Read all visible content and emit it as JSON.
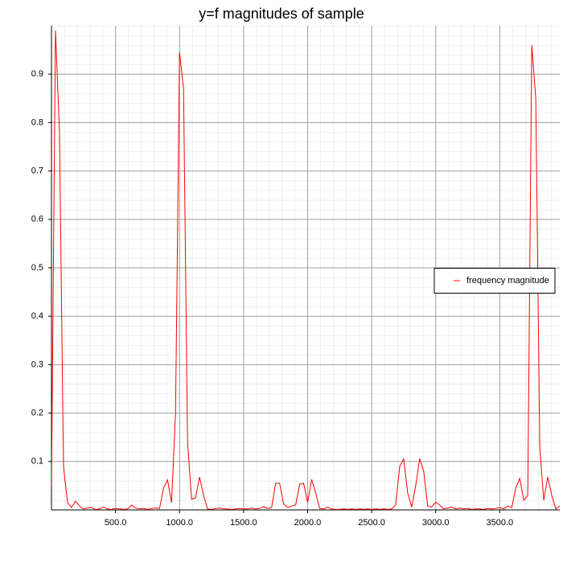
{
  "chart_data": {
    "type": "line",
    "title": "y=f magnitudes of sample",
    "x": [
      0,
      31.25,
      62.5,
      93.75,
      125,
      156.25,
      187.5,
      218.75,
      250,
      281.25,
      312.5,
      343.75,
      375,
      406.25,
      437.5,
      468.75,
      500,
      531.25,
      562.5,
      593.75,
      625,
      656.25,
      687.5,
      718.75,
      750,
      781.25,
      812.5,
      843.75,
      875,
      906.25,
      937.5,
      968.75,
      1000,
      1031.25,
      1062.5,
      1093.75,
      1125,
      1156.25,
      1187.5,
      1218.75,
      1250,
      1281.25,
      1312.5,
      1343.75,
      1375,
      1406.25,
      1437.5,
      1468.75,
      1500,
      1531.25,
      1562.5,
      1593.75,
      1625,
      1656.25,
      1687.5,
      1718.75,
      1750,
      1781.25,
      1812.5,
      1843.75,
      1875,
      1906.25,
      1937.5,
      1968.75,
      2000,
      2031.25,
      2062.5,
      2093.75,
      2125,
      2156.25,
      2187.5,
      2218.75,
      2250,
      2281.25,
      2312.5,
      2343.75,
      2375,
      2406.25,
      2437.5,
      2468.75,
      2500,
      2531.25,
      2562.5,
      2593.75,
      2625,
      2656.25,
      2687.5,
      2718.75,
      2750,
      2781.25,
      2812.5,
      2843.75,
      2875,
      2906.25,
      2937.5,
      2968.75,
      3000,
      3031.25,
      3062.5,
      3093.75,
      3125,
      3156.25,
      3187.5,
      3218.75,
      3250,
      3281.25,
      3312.5,
      3343.75,
      3375,
      3406.25,
      3437.5,
      3468.75,
      3500,
      3531.25,
      3562.5,
      3593.75,
      3625,
      3656.25,
      3687.5,
      3718.75,
      3750,
      3781.25,
      3812.5,
      3843.75,
      3875,
      3906.25,
      3937.5,
      3968.75
    ],
    "series": [
      {
        "name": "frequency magnitude",
        "color": "#ff0000",
        "values": [
          0.05,
          0.99,
          0.78,
          0.09,
          0.015,
          0.005,
          0.018,
          0.008,
          0.002,
          0.004,
          0.005,
          0.001,
          0.002,
          0.006,
          0.002,
          0.001,
          0.003,
          0.002,
          0.001,
          0.002,
          0.01,
          0.004,
          0.002,
          0.003,
          0.001,
          0.003,
          0.004,
          0.003,
          0.045,
          0.062,
          0.015,
          0.2,
          0.945,
          0.87,
          0.14,
          0.022,
          0.025,
          0.068,
          0.03,
          0.002,
          0.001,
          0.003,
          0.004,
          0.002,
          0.002,
          0.001,
          0.002,
          0.003,
          0.002,
          0.002,
          0.004,
          0.002,
          0.003,
          0.007,
          0.003,
          0.005,
          0.055,
          0.055,
          0.012,
          0.005,
          0.008,
          0.01,
          0.053,
          0.055,
          0.015,
          0.063,
          0.035,
          0.003,
          0.002,
          0.006,
          0.002,
          0.001,
          0.001,
          0.002,
          0.001,
          0.002,
          0.001,
          0.002,
          0.001,
          0.002,
          0.001,
          0.002,
          0.001,
          0.002,
          0.001,
          0.002,
          0.01,
          0.09,
          0.105,
          0.035,
          0.006,
          0.05,
          0.106,
          0.08,
          0.008,
          0.006,
          0.016,
          0.01,
          0.002,
          0.004,
          0.006,
          0.002,
          0.004,
          0.002,
          0.003,
          0.001,
          0.002,
          0.002,
          0.001,
          0.003,
          0.002,
          0.003,
          0.005,
          0.002,
          0.008,
          0.005,
          0.045,
          0.065,
          0.02,
          0.03,
          0.96,
          0.85,
          0.13,
          0.02,
          0.068,
          0.03,
          0.002,
          0.008
        ]
      }
    ],
    "xlim": [
      0,
      3968.75
    ],
    "ylim": [
      0,
      1
    ],
    "xticks": [
      {
        "value": 500,
        "label": "500.0"
      },
      {
        "value": 1000,
        "label": "1000.0"
      },
      {
        "value": 1500,
        "label": "1500.0"
      },
      {
        "value": 2000,
        "label": "2000.0"
      },
      {
        "value": 2500,
        "label": "2500.0"
      },
      {
        "value": 3000,
        "label": "3000.0"
      },
      {
        "value": 3500,
        "label": "3500.0"
      }
    ],
    "yticks": [
      0.1,
      0.2,
      0.3,
      0.4,
      0.5,
      0.6,
      0.7,
      0.8,
      0.9
    ],
    "grid": true,
    "legend": "center right"
  }
}
